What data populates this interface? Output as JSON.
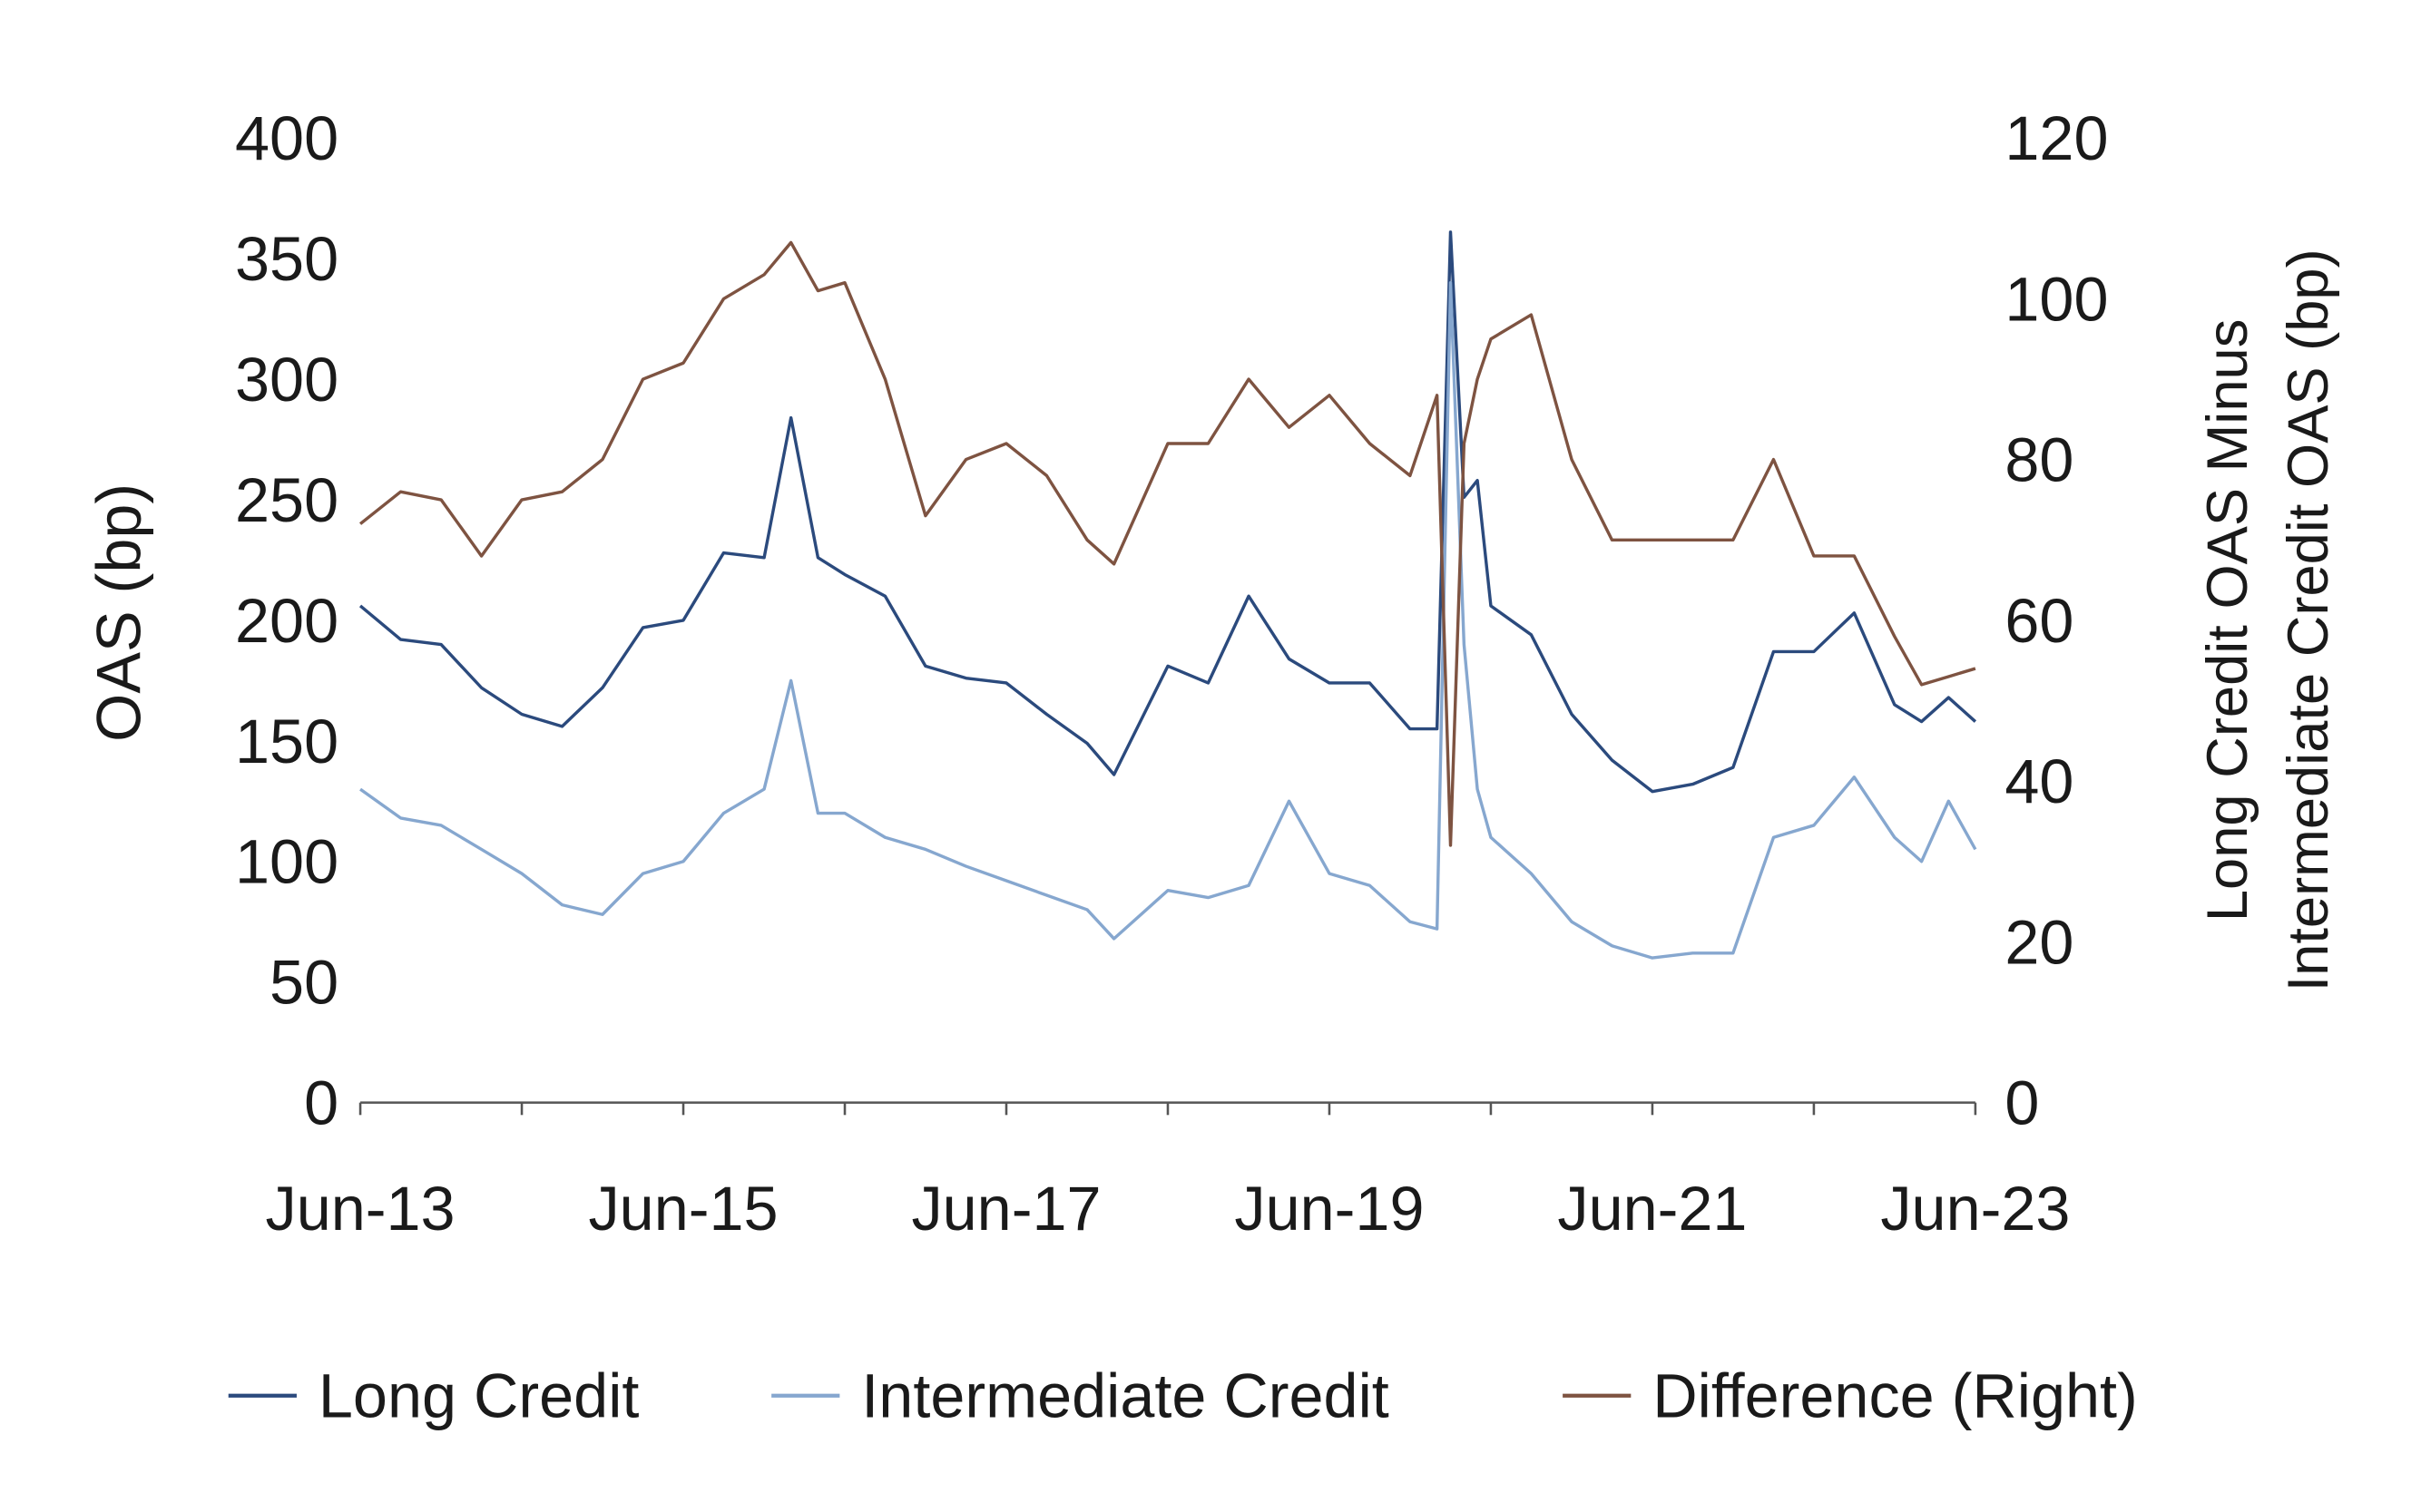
{
  "chart_data": {
    "type": "line",
    "title": "",
    "xlabel": "",
    "ylabel": "OAS (bp)",
    "ylabel_right": [
      "Long Credit OAS Minus",
      "Intermediate Credit OAS (bp)"
    ],
    "ylim": [
      0,
      400
    ],
    "ylim_right": [
      0,
      120
    ],
    "y_ticks": [
      "0",
      "50",
      "100",
      "150",
      "200",
      "250",
      "300",
      "350",
      "400"
    ],
    "y_ticks_right": [
      "0",
      "20",
      "40",
      "60",
      "80",
      "100",
      "120"
    ],
    "x_ticks": [
      "Jun-13",
      "Jun-15",
      "Jun-17",
      "Jun-19",
      "Jun-21",
      "Jun-23"
    ],
    "xlim": [
      "2013-06",
      "2023-06"
    ],
    "grid": false,
    "legend_position": "bottom",
    "x": [
      "2013-06",
      "2013-09",
      "2013-12",
      "2014-03",
      "2014-06",
      "2014-09",
      "2014-12",
      "2015-03",
      "2015-06",
      "2015-09",
      "2015-12",
      "2016-02",
      "2016-04",
      "2016-06",
      "2016-09",
      "2016-12",
      "2017-03",
      "2017-06",
      "2017-09",
      "2017-12",
      "2018-02",
      "2018-06",
      "2018-09",
      "2018-12",
      "2019-03",
      "2019-06",
      "2019-09",
      "2019-12",
      "2020-02",
      "2020-03",
      "2020-04",
      "2020-05",
      "2020-06",
      "2020-09",
      "2020-12",
      "2021-03",
      "2021-06",
      "2021-09",
      "2021-12",
      "2022-03",
      "2022-06",
      "2022-09",
      "2022-12",
      "2023-02",
      "2023-04",
      "2023-06"
    ],
    "series": [
      {
        "name": "Long Credit",
        "axis": "left",
        "color": "#2b4a7d",
        "values": [
          206,
          192,
          190,
          172,
          161,
          156,
          172,
          197,
          200,
          228,
          226,
          284,
          226,
          219,
          210,
          181,
          176,
          174,
          161,
          149,
          136,
          181,
          174,
          210,
          184,
          174,
          174,
          155,
          155,
          361,
          251,
          258,
          206,
          194,
          161,
          142,
          129,
          132,
          139,
          187,
          187,
          203,
          165,
          158,
          168,
          158
        ]
      },
      {
        "name": "Intermediate Credit",
        "axis": "left",
        "color": "#86a7cf",
        "values": [
          130,
          118,
          115,
          105,
          95,
          82,
          78,
          95,
          100,
          120,
          130,
          175,
          120,
          120,
          110,
          105,
          98,
          92,
          86,
          80,
          68,
          88,
          85,
          90,
          125,
          95,
          90,
          75,
          72,
          340,
          190,
          130,
          110,
          95,
          75,
          65,
          60,
          62,
          62,
          110,
          115,
          135,
          110,
          100,
          125,
          105
        ]
      },
      {
        "name": "Difference (Right)",
        "axis": "right",
        "color": "#7e5341",
        "values": [
          72,
          76,
          75,
          68,
          75,
          76,
          80,
          90,
          92,
          100,
          103,
          107,
          101,
          102,
          90,
          73,
          80,
          82,
          78,
          70,
          67,
          82,
          82,
          90,
          84,
          88,
          82,
          78,
          88,
          32,
          82,
          90,
          95,
          98,
          80,
          70,
          70,
          70,
          70,
          80,
          68,
          68,
          58,
          52,
          53,
          54
        ]
      }
    ]
  }
}
